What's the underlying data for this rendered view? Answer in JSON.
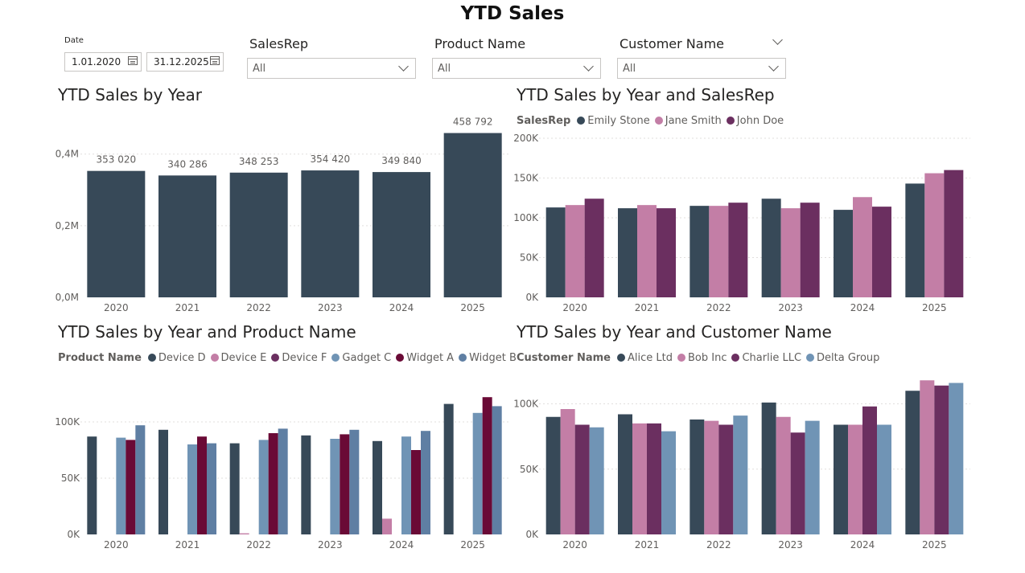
{
  "page": {
    "title": "YTD Sales"
  },
  "filters": {
    "date": {
      "label": "Date",
      "start": "1.01.2020",
      "end": "31.12.2025"
    },
    "salesrep": {
      "label": "SalesRep",
      "value": "All"
    },
    "product": {
      "label": "Product Name",
      "value": "All"
    },
    "customer": {
      "label": "Customer Name",
      "value": "All"
    }
  },
  "colors": {
    "c1": "#374958",
    "c2": "#c37ea6",
    "c3": "#6b2f60",
    "c4": "#7094b5",
    "c5": "#6a0a36",
    "c6": "#5f7fa3"
  },
  "chart_data": [
    {
      "id": "by_year",
      "type": "bar",
      "title": "YTD Sales by Year",
      "categories": [
        "2020",
        "2021",
        "2022",
        "2023",
        "2024",
        "2025"
      ],
      "series": [
        {
          "values": [
            353020,
            340286,
            348253,
            354420,
            349840,
            458792
          ]
        }
      ],
      "data_labels": [
        "353 020",
        "340 286",
        "348 253",
        "354 420",
        "349 840",
        "458 792"
      ],
      "ylim": [
        0,
        460000
      ],
      "yticks": [
        0,
        200000,
        400000
      ],
      "ytick_labels": [
        "0,0M",
        "0,2M",
        "0,4M"
      ],
      "grid": true
    },
    {
      "id": "by_salesrep",
      "type": "bar",
      "title": "YTD Sales by Year and SalesRep",
      "legend_title": "SalesRep",
      "legend_position": "top-left",
      "categories": [
        "2020",
        "2021",
        "2022",
        "2023",
        "2024",
        "2025"
      ],
      "series": [
        {
          "name": "Emily Stone",
          "values": [
            113000,
            112000,
            115000,
            124000,
            110000,
            143000
          ]
        },
        {
          "name": "Jane Smith",
          "values": [
            116000,
            116000,
            115000,
            112000,
            126000,
            156000
          ]
        },
        {
          "name": "John Doe",
          "values": [
            124000,
            112000,
            119000,
            119000,
            114000,
            160000
          ]
        }
      ],
      "ylim": [
        0,
        200000
      ],
      "yticks": [
        0,
        50000,
        100000,
        150000,
        200000
      ],
      "ytick_labels": [
        "0K",
        "50K",
        "100K",
        "150K",
        "200K"
      ],
      "grid": true
    },
    {
      "id": "by_product",
      "type": "bar",
      "title": "YTD Sales by Year and Product Name",
      "legend_title": "Product Name",
      "legend_position": "top-left",
      "categories": [
        "2020",
        "2021",
        "2022",
        "2023",
        "2024",
        "2025"
      ],
      "series": [
        {
          "name": "Device D",
          "values": [
            87000,
            93000,
            81000,
            88000,
            83000,
            116000
          ]
        },
        {
          "name": "Device E",
          "values": [
            0,
            0,
            1000,
            0,
            14000,
            0
          ]
        },
        {
          "name": "Device F",
          "values": [
            0,
            0,
            0,
            0,
            0,
            0
          ]
        },
        {
          "name": "Gadget C",
          "values": [
            86000,
            80000,
            84000,
            85000,
            87000,
            108000
          ]
        },
        {
          "name": "Widget A",
          "values": [
            84000,
            87000,
            90000,
            89000,
            75000,
            122000
          ]
        },
        {
          "name": "Widget B",
          "values": [
            97000,
            81000,
            94000,
            93000,
            92000,
            114000
          ]
        }
      ],
      "ylim": [
        0,
        125000
      ],
      "yticks": [
        0,
        50000,
        100000
      ],
      "ytick_labels": [
        "0K",
        "50K",
        "100K"
      ],
      "grid": true
    },
    {
      "id": "by_customer",
      "type": "bar",
      "title": "YTD Sales by Year and Customer Name",
      "legend_title": "Customer Name",
      "legend_position": "top-left",
      "categories": [
        "2020",
        "2021",
        "2022",
        "2023",
        "2024",
        "2025"
      ],
      "series": [
        {
          "name": "Alice Ltd",
          "values": [
            90000,
            92000,
            88000,
            101000,
            84000,
            110000
          ]
        },
        {
          "name": "Bob Inc",
          "values": [
            96000,
            85000,
            87000,
            90000,
            84000,
            118000
          ]
        },
        {
          "name": "Charlie LLC",
          "values": [
            84000,
            85000,
            84000,
            78000,
            98000,
            114000
          ]
        },
        {
          "name": "Delta Group",
          "values": [
            82000,
            79000,
            91000,
            87000,
            84000,
            116000
          ]
        }
      ],
      "ylim": [
        0,
        120000
      ],
      "yticks": [
        0,
        50000,
        100000
      ],
      "ytick_labels": [
        "0K",
        "50K",
        "100K"
      ],
      "grid": true
    }
  ]
}
